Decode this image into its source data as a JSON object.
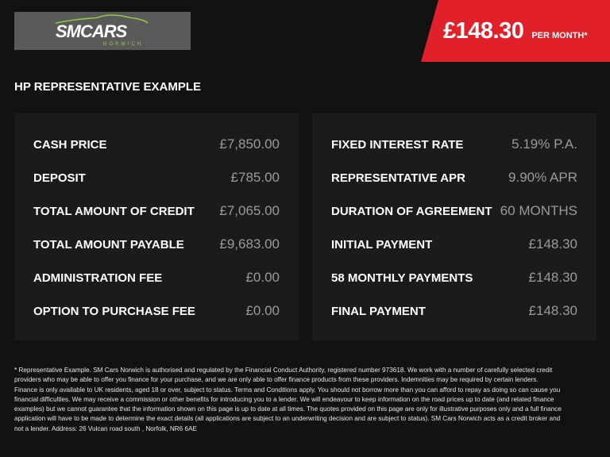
{
  "header": {
    "logo_text": "SMCARS",
    "logo_sub": "NORWICH",
    "price": "£148.30",
    "price_suffix": "PER MONTH*"
  },
  "colors": {
    "accent": "#e2202a",
    "logo_green": "#8fd140"
  },
  "title": "HP REPRESENTATIVE EXAMPLE",
  "left": [
    {
      "label": "CASH PRICE",
      "value": "£7,850.00"
    },
    {
      "label": "DEPOSIT",
      "value": "£785.00"
    },
    {
      "label": "TOTAL AMOUNT OF CREDIT",
      "value": "£7,065.00"
    },
    {
      "label": "TOTAL AMOUNT PAYABLE",
      "value": "£9,683.00"
    },
    {
      "label": "ADMINISTRATION FEE",
      "value": "£0.00"
    },
    {
      "label": "OPTION TO PURCHASE FEE",
      "value": "£0.00"
    }
  ],
  "right": [
    {
      "label": "FIXED INTEREST RATE",
      "value": "5.19% P.A."
    },
    {
      "label": "REPRESENTATIVE APR",
      "value": "9.90% APR"
    },
    {
      "label": "DURATION OF AGREEMENT",
      "value": "60 MONTHS"
    },
    {
      "label": "INITIAL PAYMENT",
      "value": "£148.30"
    },
    {
      "label": "58 MONTHLY PAYMENTS",
      "value": "£148.30"
    },
    {
      "label": "FINAL PAYMENT",
      "value": "£148.30"
    }
  ],
  "footer": "* Representative Example. SM Cars Norwich is authorised and regulated by the Financial Conduct Authority, registered number 973618. We work with a number of carefully selected credit providers who may be able to offer you finance for your purchase, and we are only able to offer finance products from these providers. Indemnities may be required by certain lenders. Finance is only available to UK residents, aged 18 or over, subject to status. Terms and Conditions apply. You should not borrow more than you can afford to repay as doing so can cause you financial difficulties. We may receive a commission or other benefits for introducing you to a lender. We will endeavour to keep information on the road prices up to date (and related finance examples) but we cannot guarantee that the information shown on this page is up to date at all times. The quotes provided on this page are only for illustrative purposes only and a full finance application will have to be made to determine the exact details (all applications are subject to an underwriting decision and are subject to status). SM Cars Norwich acts as a credit broker and not a lender. Address:  26 Vulcan road south , Norfolk, NR6 6AE"
}
